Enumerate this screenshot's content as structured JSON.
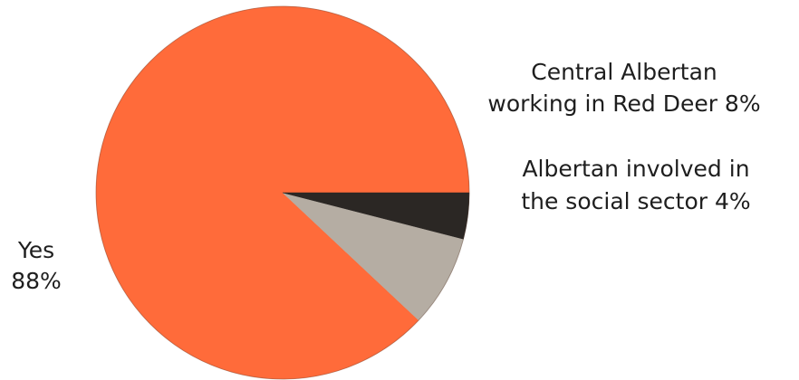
{
  "chart_data": {
    "type": "pie",
    "title": "",
    "slices": [
      {
        "label_lines": [
          "Yes",
          "88%"
        ],
        "value": 88,
        "color": "#ff6b3a"
      },
      {
        "label_lines": [
          "Central Albertan",
          "working in Red Deer 8%"
        ],
        "value": 8,
        "color": "#b5ada3"
      },
      {
        "label_lines": [
          "Albertan involved in",
          "the social sector 4%"
        ],
        "value": 4,
        "color": "#2b2724"
      }
    ],
    "legend": "none",
    "start_angle_deg": 0,
    "direction": "counterclockwise"
  }
}
